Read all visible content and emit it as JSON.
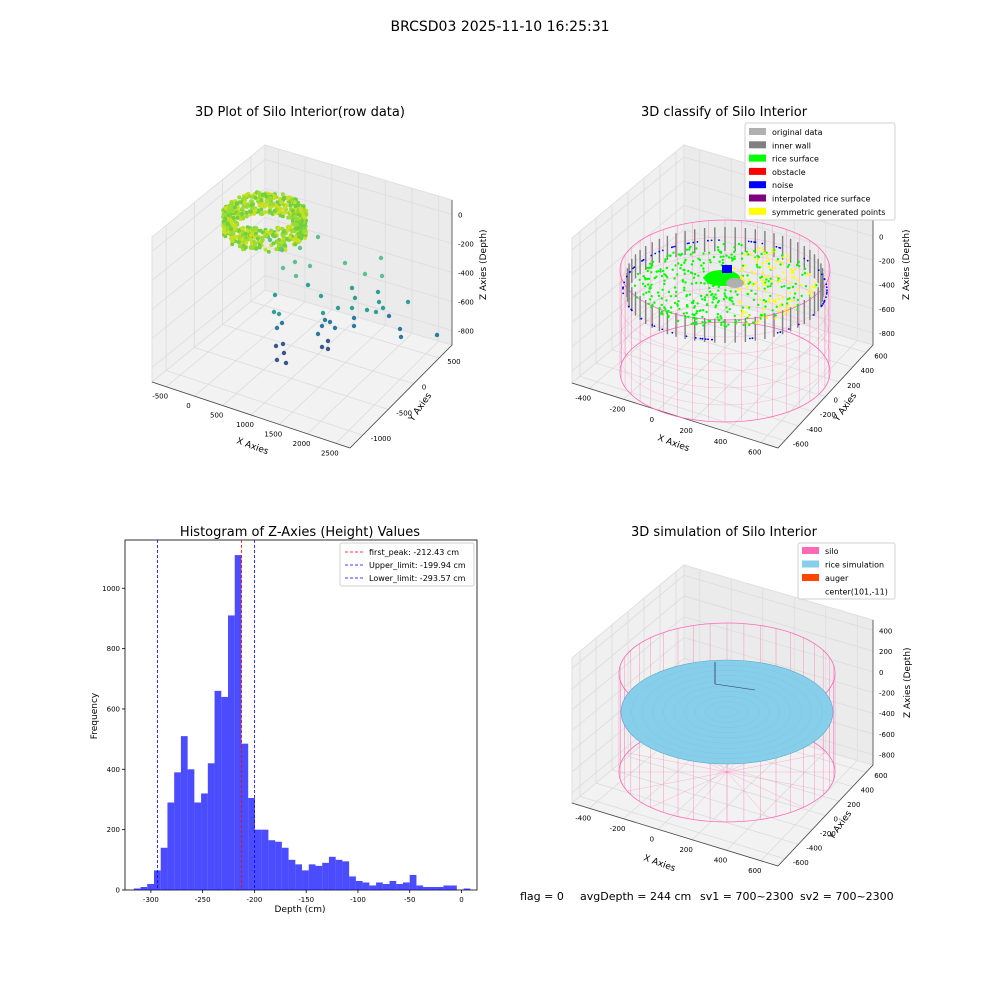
{
  "figure": {
    "suptitle": "BRCSD03 2025-11-10 16:25:31",
    "footer": {
      "flag": "flag = 0",
      "avg": "avgDepth = 244 cm",
      "sv1": "sv1 = 700~2300",
      "sv2": "sv2 = 700~2300"
    }
  },
  "colors": {
    "original_data": "#b0b0b0",
    "inner_wall": "#808080",
    "rice_surface": "#00ff00",
    "obstacle": "#ff0000",
    "noise": "#0000ff",
    "interpolated_rice_surface": "#800080",
    "symmetric_generated_points": "#ffff00",
    "silo": "#ff69b4",
    "rice_simulation": "#87ceeb",
    "auger": "#ff4500",
    "histogram": "#0000ff",
    "first_peak": "#ff0000"
  },
  "chart_data": [
    {
      "type": "scatter",
      "panel": "raw",
      "title": "3D Plot of Silo Interior(row data)",
      "xlabel": "X Axies",
      "ylabel": "Y Axies",
      "zlabel": "Z Axies (Depth)",
      "xticks": [
        "-500",
        "0",
        "500",
        "1000",
        "1500",
        "2000",
        "2500"
      ],
      "yticks": [
        "500",
        "0",
        "-500",
        "-1000"
      ],
      "zticks": [
        "0",
        "-200",
        "-400",
        "-600",
        "-800"
      ],
      "xlim": [
        -700,
        2800
      ],
      "ylim": [
        -1300,
        800
      ],
      "zlim": [
        -1000,
        50
      ]
    },
    {
      "type": "scatter",
      "panel": "classify",
      "title": "3D classify of Silo Interior",
      "xlabel": "X Axies",
      "ylabel": "Y Axies",
      "zlabel": "Z Axies (Depth)",
      "xticks": [
        "-400",
        "-200",
        "0",
        "200",
        "400",
        "600"
      ],
      "yticks": [
        "600",
        "400",
        "200",
        "0",
        "-200",
        "-400",
        "-600"
      ],
      "zticks": [
        "200",
        "0",
        "-200",
        "-400",
        "-600",
        "-800"
      ],
      "legend": [
        "original data",
        "inner wall",
        "rice surface",
        "obstacle",
        "noise",
        "interpolated rice surface",
        "symmetric generated points"
      ],
      "legend_position": "top-right"
    },
    {
      "type": "bar",
      "panel": "histogram",
      "title": "Histogram of Z-Axies (Height) Values",
      "xlabel": "Depth (cm)",
      "ylabel": "Frequency",
      "xlim": [
        -325,
        15
      ],
      "ylim": [
        0,
        1160
      ],
      "xticks": [
        -300,
        -250,
        -200,
        -150,
        -100,
        -50,
        0
      ],
      "yticks": [
        0,
        200,
        400,
        600,
        800,
        1000
      ],
      "bin_start": -316.5,
      "bin_width": 6.5,
      "values": [
        5,
        10,
        20,
        65,
        140,
        290,
        390,
        510,
        400,
        290,
        320,
        420,
        660,
        640,
        910,
        1110,
        485,
        305,
        200,
        200,
        165,
        160,
        140,
        100,
        85,
        65,
        85,
        80,
        90,
        110,
        100,
        95,
        45,
        30,
        25,
        15,
        25,
        20,
        30,
        20,
        25,
        50,
        15,
        10,
        10,
        10,
        15,
        15,
        0,
        5
      ],
      "vlines": [
        {
          "x": -212.43,
          "label": "first_peak: -212.43 cm",
          "color": "#ff0000"
        },
        {
          "x": -199.94,
          "label": "Upper_limit: -199.94 cm",
          "color": "#0000ff"
        },
        {
          "x": -293.57,
          "label": "Lower_limit: -293.57 cm",
          "color": "#0000ff"
        }
      ],
      "legend_position": "top-right"
    },
    {
      "type": "scatter",
      "panel": "simulation",
      "title": "3D simulation of Silo Interior",
      "xlabel": "X Axies",
      "ylabel": "Y Axies",
      "zlabel": "Z Axies (Depth)",
      "xticks": [
        "-400",
        "-200",
        "0",
        "200",
        "400",
        "600"
      ],
      "yticks": [
        "600",
        "400",
        "200",
        "0",
        "-200",
        "-400",
        "-600"
      ],
      "zticks": [
        "400",
        "200",
        "0",
        "-200",
        "-400",
        "-600",
        "-800"
      ],
      "legend": [
        "silo",
        "rice simulation",
        "auger",
        "center(101,-11)"
      ],
      "legend_position": "top-right"
    }
  ]
}
